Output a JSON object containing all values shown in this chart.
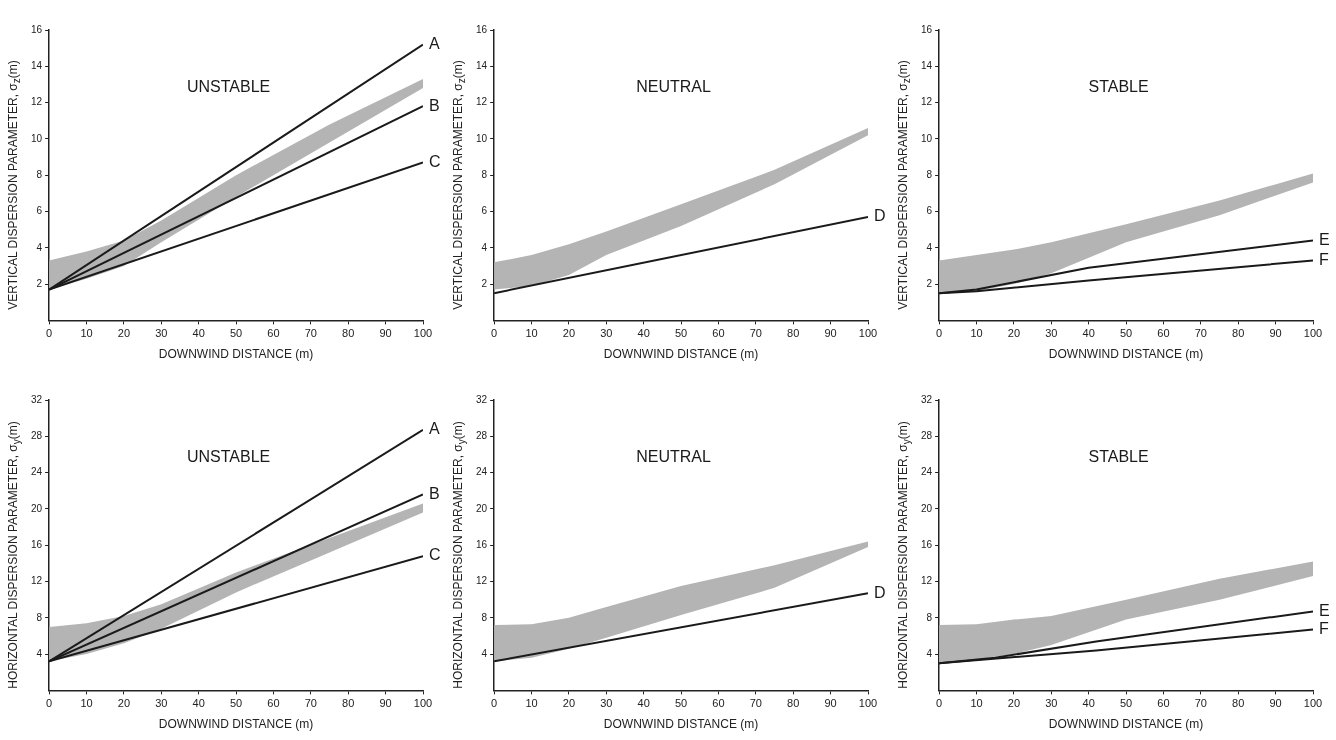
{
  "chart_data": [
    {
      "type": "line",
      "title": "UNSTABLE",
      "xlabel": "DOWNWIND DISTANCE (m)",
      "ylabel": "VERTICAL DISPERSION PARAMETER, σ$_{z}$(m)",
      "xlim": [
        0,
        100
      ],
      "xticks": [
        0,
        10,
        20,
        30,
        40,
        50,
        60,
        70,
        80,
        90,
        100
      ],
      "ylim": [
        0,
        16
      ],
      "yticks": [
        2,
        4,
        6,
        8,
        10,
        12,
        14,
        16
      ],
      "legend": false,
      "marker": "none",
      "series": [
        {
          "color": "#b4b4b4",
          "x": [
            0,
            10,
            20,
            30,
            50,
            75,
            100
          ],
          "values": [
            null,
            null,
            null,
            null,
            null,
            null,
            null
          ],
          "lower": [
            1.7,
            2.3,
            3.0,
            4.3,
            6.8,
            9.8,
            12.8
          ],
          "upper": [
            3.3,
            3.8,
            4.4,
            5.5,
            8.0,
            10.8,
            13.3
          ]
        },
        {
          "name": "A",
          "color": "#1a1a1a",
          "x": [
            0,
            100
          ],
          "values": [
            1.7,
            15.2
          ]
        },
        {
          "name": "B",
          "color": "#1a1a1a",
          "x": [
            0,
            100
          ],
          "values": [
            1.7,
            11.8
          ]
        },
        {
          "name": "C",
          "color": "#1a1a1a",
          "x": [
            0,
            100
          ],
          "values": [
            1.7,
            8.7
          ]
        }
      ]
    },
    {
      "type": "line",
      "title": "NEUTRAL",
      "xlabel": "DOWNWIND DISTANCE (m)",
      "ylabel": "VERTICAL DISPERSION PARAMETER, σ$_{z}$(m)",
      "xlim": [
        0,
        100
      ],
      "xticks": [
        0,
        10,
        20,
        30,
        40,
        50,
        60,
        70,
        80,
        90,
        100
      ],
      "ylim": [
        0,
        16
      ],
      "yticks": [
        2,
        4,
        6,
        8,
        10,
        12,
        14,
        16
      ],
      "legend": false,
      "marker": "none",
      "series": [
        {
          "color": "#b4b4b4",
          "x": [
            0,
            10,
            20,
            30,
            50,
            75,
            100
          ],
          "values": [
            null,
            null,
            null,
            null,
            null,
            null,
            null
          ],
          "lower": [
            1.7,
            1.9,
            2.5,
            3.6,
            5.2,
            7.5,
            10.2
          ],
          "upper": [
            3.2,
            3.6,
            4.2,
            4.9,
            6.4,
            8.3,
            10.6
          ]
        },
        {
          "name": "D",
          "color": "#1a1a1a",
          "x": [
            0,
            100
          ],
          "values": [
            1.5,
            5.7
          ]
        }
      ]
    },
    {
      "type": "line",
      "title": "STABLE",
      "xlabel": "DOWNWIND DISTANCE (m)",
      "ylabel": "VERTICAL DISPERSION PARAMETER, σ$_{z}$(m)",
      "xlim": [
        0,
        100
      ],
      "xticks": [
        0,
        10,
        20,
        30,
        40,
        50,
        60,
        70,
        80,
        90,
        100
      ],
      "ylim": [
        0,
        16
      ],
      "yticks": [
        2,
        4,
        6,
        8,
        10,
        12,
        14,
        16
      ],
      "legend": false,
      "marker": "none",
      "series": [
        {
          "color": "#b4b4b4",
          "x": [
            0,
            10,
            20,
            30,
            50,
            75,
            100
          ],
          "values": [
            null,
            null,
            null,
            null,
            null,
            null,
            null
          ],
          "lower": [
            1.5,
            1.6,
            2.0,
            2.6,
            4.3,
            5.8,
            7.6
          ],
          "upper": [
            3.3,
            3.6,
            3.9,
            4.3,
            5.3,
            6.6,
            8.1
          ]
        },
        {
          "name": "E",
          "color": "#1a1a1a",
          "x": [
            0,
            10,
            40,
            100
          ],
          "values": [
            1.5,
            1.7,
            2.9,
            4.4
          ]
        },
        {
          "name": "F",
          "color": "#1a1a1a",
          "x": [
            0,
            10,
            40,
            100
          ],
          "values": [
            1.5,
            1.6,
            2.2,
            3.3
          ]
        }
      ]
    },
    {
      "type": "line",
      "title": "UNSTABLE",
      "xlabel": "DOWNWIND DISTANCE (m)",
      "ylabel": "HORIZONTAL DISPERSION PARAMETER, σ$_{y}$(m)",
      "xlim": [
        0,
        100
      ],
      "xticks": [
        0,
        10,
        20,
        30,
        40,
        50,
        60,
        70,
        80,
        90,
        100
      ],
      "ylim": [
        0,
        32
      ],
      "yticks": [
        4,
        8,
        12,
        16,
        20,
        24,
        28,
        32
      ],
      "legend": false,
      "marker": "none",
      "series": [
        {
          "color": "#b4b4b4",
          "x": [
            0,
            10,
            20,
            30,
            50,
            75,
            100
          ],
          "values": [
            null,
            null,
            null,
            null,
            null,
            null,
            null
          ],
          "lower": [
            3.2,
            4.0,
            5.2,
            6.8,
            10.8,
            15.2,
            19.6
          ],
          "upper": [
            7.0,
            7.4,
            8.2,
            9.5,
            13.0,
            16.8,
            20.6
          ]
        },
        {
          "name": "A",
          "color": "#1a1a1a",
          "x": [
            0,
            100
          ],
          "values": [
            3.2,
            28.7
          ]
        },
        {
          "name": "B",
          "color": "#1a1a1a",
          "x": [
            0,
            100
          ],
          "values": [
            3.2,
            21.6
          ]
        },
        {
          "name": "C",
          "color": "#1a1a1a",
          "x": [
            0,
            100
          ],
          "values": [
            3.2,
            14.8
          ]
        }
      ]
    },
    {
      "type": "line",
      "title": "NEUTRAL",
      "xlabel": "DOWNWIND DISTANCE (m)",
      "ylabel": "HORIZONTAL DISPERSION PARAMETER, σ$_{y}$(m)",
      "xlim": [
        0,
        100
      ],
      "xticks": [
        0,
        10,
        20,
        30,
        40,
        50,
        60,
        70,
        80,
        90,
        100
      ],
      "ylim": [
        0,
        32
      ],
      "yticks": [
        4,
        8,
        12,
        16,
        20,
        24,
        28,
        32
      ],
      "legend": false,
      "marker": "none",
      "series": [
        {
          "color": "#b4b4b4",
          "x": [
            0,
            10,
            20,
            30,
            50,
            75,
            100
          ],
          "values": [
            null,
            null,
            null,
            null,
            null,
            null,
            null
          ],
          "lower": [
            3.2,
            3.6,
            4.6,
            5.8,
            8.3,
            11.3,
            15.8
          ],
          "upper": [
            7.2,
            7.3,
            8.0,
            9.2,
            11.5,
            13.8,
            16.4
          ]
        },
        {
          "name": "D",
          "color": "#1a1a1a",
          "x": [
            0,
            100
          ],
          "values": [
            3.2,
            10.7
          ]
        }
      ]
    },
    {
      "type": "line",
      "title": "STABLE",
      "xlabel": "DOWNWIND DISTANCE (m)",
      "ylabel": "HORIZONTAL DISPERSION PARAMETER, σ$_{y}$(m)",
      "xlim": [
        0,
        100
      ],
      "xticks": [
        0,
        10,
        20,
        30,
        40,
        50,
        60,
        70,
        80,
        90,
        100
      ],
      "ylim": [
        0,
        32
      ],
      "yticks": [
        4,
        8,
        12,
        16,
        20,
        24,
        28,
        32
      ],
      "legend": false,
      "marker": "none",
      "series": [
        {
          "color": "#b4b4b4",
          "x": [
            0,
            10,
            20,
            30,
            50,
            75,
            100
          ],
          "values": [
            null,
            null,
            null,
            null,
            null,
            null,
            null
          ],
          "lower": [
            3.0,
            3.4,
            4.0,
            5.0,
            7.8,
            10.0,
            12.6
          ],
          "upper": [
            7.2,
            7.3,
            7.8,
            8.2,
            10.0,
            12.3,
            14.2
          ]
        },
        {
          "name": "E",
          "color": "#1a1a1a",
          "x": [
            0,
            15,
            42,
            100
          ],
          "values": [
            3.0,
            3.6,
            5.4,
            8.7
          ]
        },
        {
          "name": "F",
          "color": "#1a1a1a",
          "x": [
            0,
            42,
            100
          ],
          "values": [
            3.0,
            4.4,
            6.7
          ]
        }
      ]
    }
  ]
}
